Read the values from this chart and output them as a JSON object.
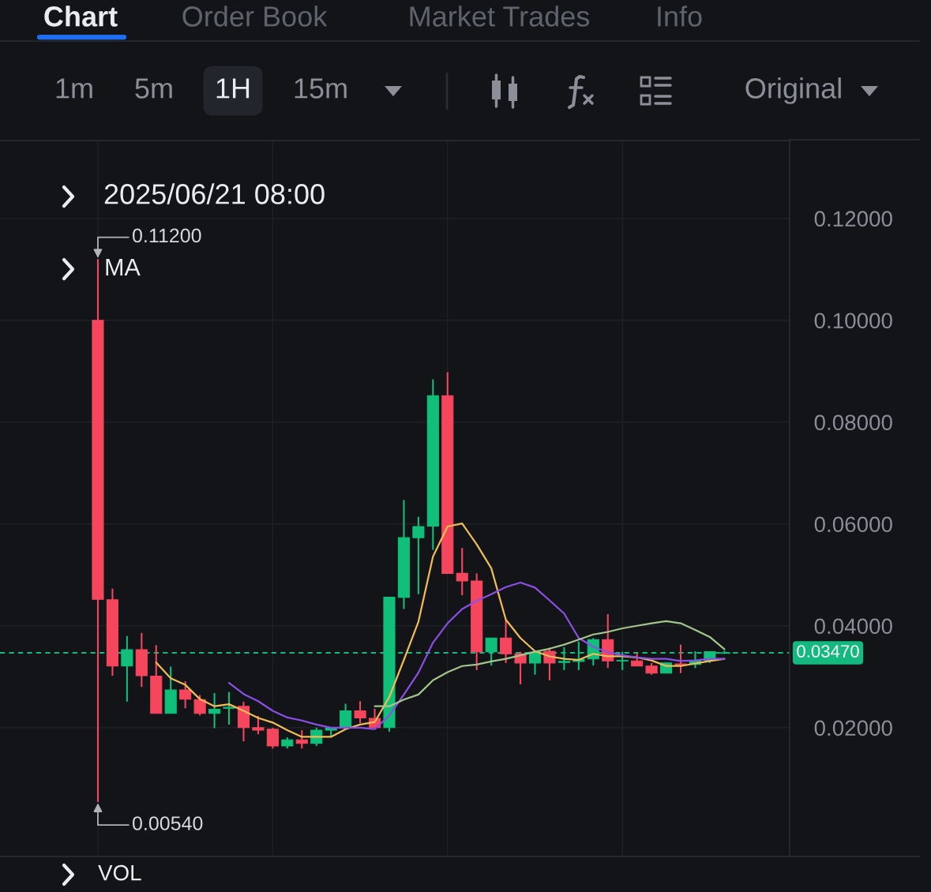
{
  "chart_data": {
    "type": "candlestick",
    "categories": [
      null,
      null,
      null,
      null,
      null,
      null,
      null,
      null,
      null,
      null,
      null,
      null,
      null,
      null,
      null,
      null,
      null,
      null,
      null,
      null,
      null,
      null,
      null,
      null,
      null,
      null,
      null,
      null,
      null,
      null,
      null,
      null,
      null,
      null,
      null,
      null,
      null,
      null,
      null,
      null,
      null,
      null,
      null,
      null
    ],
    "ohlc": [
      [
        0.1,
        0.112,
        0.0054,
        0.0452
      ],
      [
        0.0451,
        0.0473,
        0.0302,
        0.0321
      ],
      [
        0.0321,
        0.038,
        0.0251,
        0.0353
      ],
      [
        0.0353,
        0.0386,
        0.028,
        0.0302
      ],
      [
        0.0301,
        0.0362,
        0.0228,
        0.0228
      ],
      [
        0.0228,
        0.032,
        0.0228,
        0.0274
      ],
      [
        0.0274,
        0.0291,
        0.0238,
        0.0256
      ],
      [
        0.0255,
        0.0264,
        0.0224,
        0.0228
      ],
      [
        0.0228,
        0.0268,
        0.0199,
        0.0236
      ],
      [
        0.0238,
        0.027,
        0.0206,
        0.024
      ],
      [
        0.0242,
        0.0251,
        0.0173,
        0.02
      ],
      [
        0.02,
        0.0223,
        0.0187,
        0.0195
      ],
      [
        0.0197,
        0.02,
        0.0159,
        0.0164
      ],
      [
        0.0164,
        0.0181,
        0.0159,
        0.0176
      ],
      [
        0.0176,
        0.0195,
        0.0159,
        0.0169
      ],
      [
        0.0169,
        0.02,
        0.0164,
        0.0195
      ],
      [
        0.0195,
        0.02,
        0.0183,
        0.02
      ],
      [
        0.02,
        0.0247,
        0.02,
        0.0233
      ],
      [
        0.0233,
        0.0252,
        0.0209,
        0.0219
      ],
      [
        0.0218,
        0.0237,
        0.02,
        0.02
      ],
      [
        0.02,
        0.0456,
        0.0192,
        0.0456
      ],
      [
        0.0456,
        0.0647,
        0.0433,
        0.0573
      ],
      [
        0.0573,
        0.0614,
        0.0462,
        0.0595
      ],
      [
        0.0596,
        0.0884,
        0.0549,
        0.0852
      ],
      [
        0.0852,
        0.0898,
        0.0503,
        0.0503
      ],
      [
        0.0503,
        0.0553,
        0.046,
        0.0488
      ],
      [
        0.0488,
        0.0503,
        0.0313,
        0.0349
      ],
      [
        0.0349,
        0.0376,
        0.0322,
        0.0376
      ],
      [
        0.0376,
        0.0412,
        0.0327,
        0.0345
      ],
      [
        0.0345,
        0.0349,
        0.0285,
        0.0327
      ],
      [
        0.0327,
        0.0352,
        0.0304,
        0.0348
      ],
      [
        0.035,
        0.0357,
        0.0293,
        0.0327
      ],
      [
        0.0328,
        0.0358,
        0.0313,
        0.033
      ],
      [
        0.033,
        0.0369,
        0.0313,
        0.0334
      ],
      [
        0.0335,
        0.0376,
        0.0322,
        0.0373
      ],
      [
        0.0373,
        0.0423,
        0.0317,
        0.0331
      ],
      [
        0.0331,
        0.0349,
        0.0313,
        0.0332
      ],
      [
        0.0331,
        0.0347,
        0.0321,
        0.0321
      ],
      [
        0.0321,
        0.0327,
        0.0304,
        0.0307
      ],
      [
        0.0307,
        0.0328,
        0.0307,
        0.0327
      ],
      [
        0.0325,
        0.0363,
        0.0307,
        0.0323
      ],
      [
        0.0324,
        0.035,
        0.0317,
        0.0332
      ],
      [
        0.0332,
        0.035,
        0.0327,
        0.0349
      ],
      [
        0.0346,
        0.0351,
        0.0345,
        0.0347
      ]
    ],
    "colors": [
      "#f6465d",
      "#f6465d",
      "#0fbf7a",
      "#f6465d",
      "#f6465d",
      "#0fbf7a",
      "#f6465d",
      "#f6465d",
      "#0fbf7a",
      "#0fbf7a",
      "#f6465d",
      "#f6465d",
      "#f6465d",
      "#0fbf7a",
      "#f6465d",
      "#0fbf7a",
      "#0fbf7a",
      "#0fbf7a",
      "#f6465d",
      "#f6465d",
      "#0fbf7a",
      "#0fbf7a",
      "#0fbf7a",
      "#0fbf7a",
      "#f6465d",
      "#f6465d",
      "#f6465d",
      "#0fbf7a",
      "#f6465d",
      "#f6465d",
      "#0fbf7a",
      "#f6465d",
      "#0fbf7a",
      "#0fbf7a",
      "#0fbf7a",
      "#f6465d",
      "#0fbf7a",
      "#f6465d",
      "#f6465d",
      "#0fbf7a",
      "#f6465d",
      "#0fbf7a",
      "#0fbf7a",
      "#0fbf7a"
    ],
    "series": [
      {
        "type": "line",
        "color": "#f0bc55",
        "values": [
          null,
          null,
          null,
          null,
          0.0328,
          0.0297,
          0.0284,
          0.0256,
          0.0242,
          0.0246,
          0.0233,
          0.0219,
          0.021,
          0.0195,
          0.0182,
          0.0182,
          0.0182,
          0.0197,
          0.0206,
          0.0211,
          0.026,
          0.0333,
          0.0408,
          0.0536,
          0.0595,
          0.0601,
          0.056,
          0.0513,
          0.0412,
          0.0376,
          0.035,
          0.034,
          0.0335,
          0.0333,
          0.0345,
          0.034,
          0.034,
          0.0338,
          0.0332,
          0.0321,
          0.0321,
          0.0326,
          0.0331,
          0.0335
        ]
      },
      {
        "type": "line",
        "color": "#8b4fe8",
        "values": [
          null,
          null,
          null,
          null,
          null,
          null,
          null,
          null,
          null,
          0.0288,
          0.0266,
          0.0252,
          0.0233,
          0.022,
          0.0214,
          0.0206,
          0.02,
          0.02,
          0.02,
          0.0197,
          0.0224,
          0.0265,
          0.0308,
          0.0367,
          0.0405,
          0.0433,
          0.0449,
          0.0462,
          0.0476,
          0.0485,
          0.0475,
          0.045,
          0.0424,
          0.0376,
          0.0359,
          0.0348,
          0.0342,
          0.0338,
          0.0335,
          0.0335,
          0.0331,
          0.0332,
          0.0335,
          0.0335
        ]
      },
      {
        "type": "line",
        "color": "#a3c48a",
        "values": [
          null,
          null,
          null,
          null,
          null,
          null,
          null,
          null,
          null,
          null,
          null,
          null,
          null,
          null,
          null,
          null,
          null,
          null,
          null,
          0.0242,
          0.0242,
          0.0255,
          0.0265,
          0.0293,
          0.0309,
          0.0321,
          0.0324,
          0.033,
          0.0335,
          0.0342,
          0.0349,
          0.0355,
          0.0363,
          0.0373,
          0.0383,
          0.0388,
          0.0395,
          0.04,
          0.0405,
          0.0409,
          0.0405,
          0.0392,
          0.0378,
          0.0354
        ]
      }
    ],
    "ylim": [
      -0.0053,
      0.1353
    ],
    "yticks": [
      {
        "value": 0.02,
        "label": "0.02000"
      },
      {
        "value": 0.04,
        "label": "0.04000"
      },
      {
        "value": 0.06,
        "label": "0.06000"
      },
      {
        "value": 0.08,
        "label": "0.08000"
      },
      {
        "value": 0.1,
        "label": "0.10000"
      },
      {
        "value": 0.12,
        "label": "0.12000"
      }
    ],
    "tick_labels": "y",
    "grid": true,
    "ref_lines": [
      {
        "axis": "y",
        "value": 0.0347,
        "label": "0.03470",
        "color": "#13b97e",
        "line_style": "dashed"
      }
    ],
    "annotations": [
      "Chart",
      "Order Book",
      "Market Trades",
      "Info",
      "1m",
      "5m",
      "1H",
      "15m",
      "Original",
      "2025/06/21 08:00",
      "MA",
      "0.11200",
      "0.00540",
      "VOL"
    ]
  }
}
